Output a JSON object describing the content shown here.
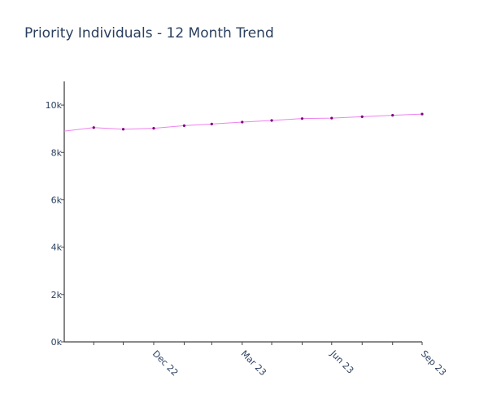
{
  "chart_data": {
    "type": "line",
    "title": "Priority Individuals - 12 Month Trend",
    "xlabel": "",
    "ylabel": "",
    "x_ticks": [
      "",
      "",
      "Dec 22",
      "",
      "",
      "Mar 23",
      "",
      "",
      "Jun 23",
      "",
      "",
      "Sep 23"
    ],
    "y_ticks": [
      "0k",
      "2k",
      "4k",
      "6k",
      "8k",
      "10k"
    ],
    "y_tick_values": [
      0,
      2000,
      4000,
      6000,
      8000,
      10000
    ],
    "ylim": [
      0,
      11000
    ],
    "xlim": [
      "2022-10-01",
      "2023-09-30"
    ],
    "grid": false,
    "legend": "none",
    "line_color": "#ee82ee",
    "marker_color": "#800080",
    "series": [
      {
        "x": [
          "2022-10-01",
          "2022-10-31",
          "2022-11-30",
          "2022-12-31",
          "2023-01-31",
          "2023-02-28",
          "2023-03-31",
          "2023-04-30",
          "2023-05-31",
          "2023-06-30",
          "2023-07-31",
          "2023-08-31",
          "2023-09-30"
        ],
        "values": [
          8900,
          9050,
          8980,
          9020,
          9130,
          9200,
          9280,
          9350,
          9430,
          9450,
          9510,
          9570,
          9620
        ]
      }
    ]
  }
}
